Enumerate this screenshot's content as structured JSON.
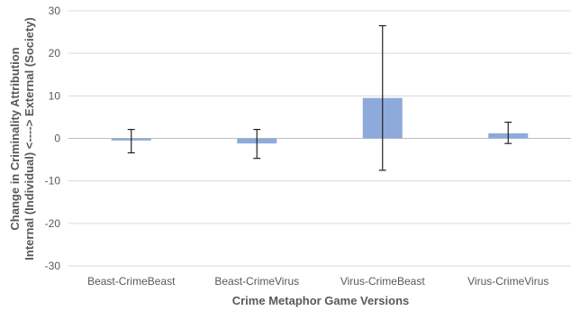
{
  "chart_data": {
    "type": "bar",
    "xlabel": "Crime Metaphor Game Versions",
    "ylabel_lines": [
      "Change in Criminality Attribution",
      "Internal (Individual) <----> External (Society)"
    ],
    "ylim": [
      -30,
      30
    ],
    "y_ticks": [
      30,
      20,
      10,
      0,
      -10,
      -20,
      -30
    ],
    "grid": true,
    "categories": [
      "Beast-CrimeBeast",
      "Beast-CrimeVirus",
      "Virus-CrimeBeast",
      "Virus-CrimeVirus"
    ],
    "values": [
      -0.5,
      -1.2,
      9.5,
      1.2
    ],
    "error_low": [
      -3.4,
      -4.7,
      -7.5,
      -1.2
    ],
    "error_high": [
      2.1,
      2.1,
      26.5,
      3.8
    ],
    "bar_color": "#8eaadb",
    "error_color": "#222222"
  }
}
